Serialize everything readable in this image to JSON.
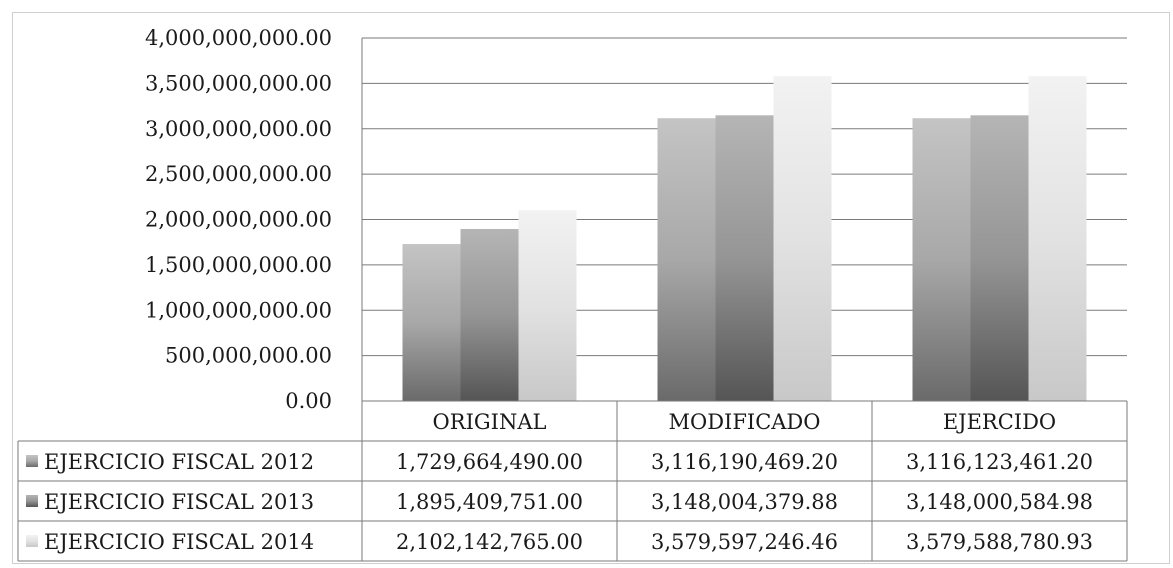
{
  "chart_data": {
    "type": "bar",
    "categories": [
      "ORIGINAL",
      "MODIFICADO",
      "EJERCIDO"
    ],
    "series": [
      {
        "name": "EJERCICIO FISCAL 2012",
        "color": "#8e8e8e",
        "values": [
          1729664490.0,
          3116190469.2,
          3116123461.2
        ],
        "labels": [
          "1,729,664,490.00",
          "3,116,190,469.20",
          "3,116,123,461.20"
        ]
      },
      {
        "name": "EJERCICIO FISCAL 2013",
        "color": "#7c7c7c",
        "values": [
          1895409751.0,
          3148004379.88,
          3148000584.98
        ],
        "labels": [
          "1,895,409,751.00",
          "3,148,004,379.88",
          "3,148,000,584.98"
        ]
      },
      {
        "name": "EJERCICIO FISCAL 2014",
        "color": "#d6d6d6",
        "values": [
          2102142765.0,
          3579597246.46,
          3579588780.93
        ],
        "labels": [
          "2,102,142,765.00",
          "3,579,597,246.46",
          "3,579,588,780.93"
        ]
      }
    ],
    "yticks": [
      0,
      500000000,
      1000000000,
      1500000000,
      2000000000,
      2500000000,
      3000000000,
      3500000000,
      4000000000
    ],
    "ytick_labels": [
      "0.00",
      "500,000,000.00",
      "1,000,000,000.00",
      "1,500,000,000.00",
      "2,000,000,000.00",
      "2,500,000,000.00",
      "3,000,000,000.00",
      "3,500,000,000.00",
      "4,000,000,000.00"
    ],
    "ylim": [
      0,
      4000000000
    ],
    "grid": true,
    "legend": "data-table"
  }
}
